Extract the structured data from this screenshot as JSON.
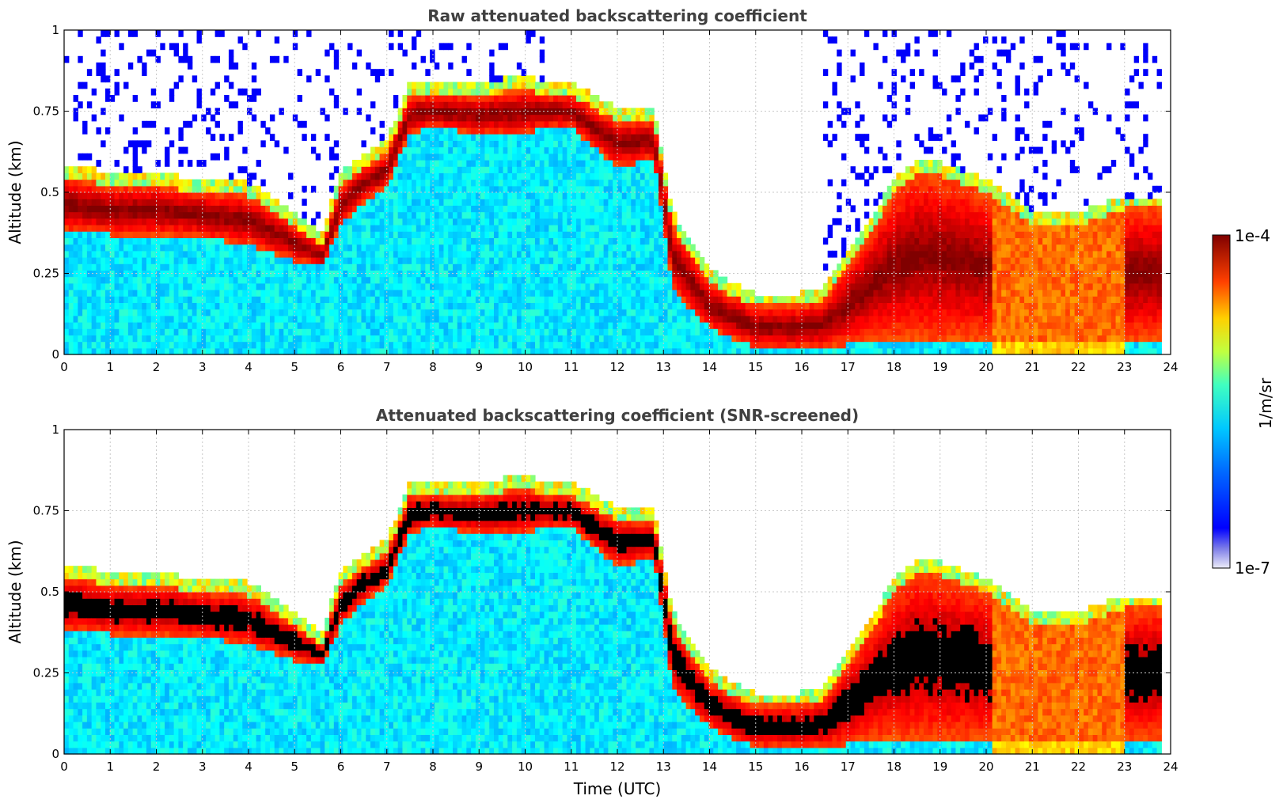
{
  "chart_data": [
    {
      "type": "heatmap",
      "title": "Raw attenuated backscattering coefficient",
      "xlabel": "",
      "ylabel": "Altitude (km)",
      "xlim": [
        0,
        24
      ],
      "ylim": [
        0,
        1
      ],
      "xticks": [
        "0",
        "1",
        "2",
        "3",
        "4",
        "5",
        "6",
        "7",
        "8",
        "9",
        "10",
        "11",
        "12",
        "13",
        "14",
        "15",
        "16",
        "17",
        "18",
        "19",
        "20",
        "21",
        "22",
        "23",
        "24"
      ],
      "yticks": [
        "0",
        "0.25",
        "0.5",
        "0.75",
        "1"
      ],
      "grid": true,
      "screened": false,
      "layer_top_km": [
        [
          0,
          0.55
        ],
        [
          1,
          0.52
        ],
        [
          2,
          0.52
        ],
        [
          3,
          0.5
        ],
        [
          4,
          0.49
        ],
        [
          5,
          0.4
        ],
        [
          5.6,
          0.34
        ],
        [
          6,
          0.52
        ],
        [
          6.5,
          0.58
        ],
        [
          7,
          0.62
        ],
        [
          7.5,
          0.8
        ],
        [
          8,
          0.8
        ],
        [
          9,
          0.8
        ],
        [
          10,
          0.82
        ],
        [
          10.5,
          0.8
        ],
        [
          11,
          0.8
        ],
        [
          12,
          0.72
        ],
        [
          12.8,
          0.72
        ],
        [
          13.2,
          0.4
        ],
        [
          14,
          0.22
        ],
        [
          15,
          0.15
        ],
        [
          16,
          0.15
        ],
        [
          16.5,
          0.17
        ],
        [
          17,
          0.28
        ],
        [
          17.5,
          0.38
        ],
        [
          18,
          0.5
        ],
        [
          18.5,
          0.56
        ],
        [
          19,
          0.55
        ],
        [
          20,
          0.5
        ],
        [
          21,
          0.4
        ],
        [
          22,
          0.4
        ],
        [
          23,
          0.45
        ],
        [
          23.8,
          0.45
        ]
      ],
      "layer_base_km": [
        [
          0,
          0.38
        ],
        [
          1,
          0.37
        ],
        [
          2,
          0.37
        ],
        [
          3,
          0.36
        ],
        [
          4,
          0.34
        ],
        [
          5,
          0.29
        ],
        [
          5.6,
          0.27
        ],
        [
          6,
          0.4
        ],
        [
          6.5,
          0.47
        ],
        [
          7,
          0.52
        ],
        [
          7.5,
          0.68
        ],
        [
          8,
          0.7
        ],
        [
          9,
          0.68
        ],
        [
          10,
          0.68
        ],
        [
          10.5,
          0.7
        ],
        [
          11,
          0.7
        ],
        [
          12,
          0.58
        ],
        [
          12.8,
          0.6
        ],
        [
          13.2,
          0.2
        ],
        [
          14,
          0.08
        ],
        [
          15,
          0.02
        ],
        [
          16,
          0.02
        ],
        [
          16.5,
          0.02
        ],
        [
          17,
          0.03
        ],
        [
          17.5,
          0.05
        ],
        [
          18,
          0.05
        ],
        [
          18.5,
          0.05
        ],
        [
          19,
          0.05
        ],
        [
          20,
          0.05
        ],
        [
          21,
          0.05
        ],
        [
          22,
          0.05
        ],
        [
          23,
          0.05
        ],
        [
          23.8,
          0.05
        ]
      ]
    },
    {
      "type": "heatmap",
      "title": "Attenuated backscattering coefficient (SNR-screened)",
      "xlabel": "Time (UTC)",
      "ylabel": "Altitude (km)",
      "xlim": [
        0,
        24
      ],
      "ylim": [
        0,
        1
      ],
      "xticks": [
        "0",
        "1",
        "2",
        "3",
        "4",
        "5",
        "6",
        "7",
        "8",
        "9",
        "10",
        "11",
        "12",
        "13",
        "14",
        "15",
        "16",
        "17",
        "18",
        "19",
        "20",
        "21",
        "22",
        "23",
        "24"
      ],
      "yticks": [
        "0",
        "0.25",
        "0.5",
        "0.75",
        "1"
      ],
      "grid": true,
      "screened": true,
      "layer_top_km": [
        [
          0,
          0.55
        ],
        [
          1,
          0.52
        ],
        [
          2,
          0.52
        ],
        [
          3,
          0.5
        ],
        [
          4,
          0.49
        ],
        [
          5,
          0.4
        ],
        [
          5.6,
          0.34
        ],
        [
          6,
          0.52
        ],
        [
          6.5,
          0.58
        ],
        [
          7,
          0.62
        ],
        [
          7.5,
          0.8
        ],
        [
          8,
          0.8
        ],
        [
          9,
          0.8
        ],
        [
          10,
          0.82
        ],
        [
          10.5,
          0.8
        ],
        [
          11,
          0.8
        ],
        [
          12,
          0.72
        ],
        [
          12.8,
          0.72
        ],
        [
          13.2,
          0.4
        ],
        [
          14,
          0.22
        ],
        [
          15,
          0.15
        ],
        [
          16,
          0.15
        ],
        [
          16.5,
          0.17
        ],
        [
          17,
          0.28
        ],
        [
          17.5,
          0.38
        ],
        [
          18,
          0.5
        ],
        [
          18.5,
          0.56
        ],
        [
          19,
          0.55
        ],
        [
          20,
          0.5
        ],
        [
          21,
          0.4
        ],
        [
          22,
          0.4
        ],
        [
          23,
          0.45
        ],
        [
          23.8,
          0.45
        ]
      ],
      "layer_base_km": [
        [
          0,
          0.38
        ],
        [
          1,
          0.37
        ],
        [
          2,
          0.37
        ],
        [
          3,
          0.36
        ],
        [
          4,
          0.34
        ],
        [
          5,
          0.29
        ],
        [
          5.6,
          0.27
        ],
        [
          6,
          0.4
        ],
        [
          6.5,
          0.47
        ],
        [
          7,
          0.52
        ],
        [
          7.5,
          0.68
        ],
        [
          8,
          0.7
        ],
        [
          9,
          0.68
        ],
        [
          10,
          0.68
        ],
        [
          10.5,
          0.7
        ],
        [
          11,
          0.7
        ],
        [
          12,
          0.58
        ],
        [
          12.8,
          0.6
        ],
        [
          13.2,
          0.2
        ],
        [
          14,
          0.08
        ],
        [
          15,
          0.02
        ],
        [
          16,
          0.02
        ],
        [
          16.5,
          0.02
        ],
        [
          17,
          0.03
        ],
        [
          17.5,
          0.05
        ],
        [
          18,
          0.05
        ],
        [
          18.5,
          0.05
        ],
        [
          19,
          0.05
        ],
        [
          20,
          0.05
        ],
        [
          21,
          0.05
        ],
        [
          22,
          0.05
        ],
        [
          23,
          0.05
        ],
        [
          23.8,
          0.05
        ]
      ]
    }
  ],
  "colorbar": {
    "label": "1/m/sr",
    "min_label": "1e-7",
    "max_label": "1e-4",
    "colormap": "jet"
  },
  "colors": {
    "title": "#404040",
    "grid": "#c8c8c8",
    "saturated_screened": "#000000"
  }
}
